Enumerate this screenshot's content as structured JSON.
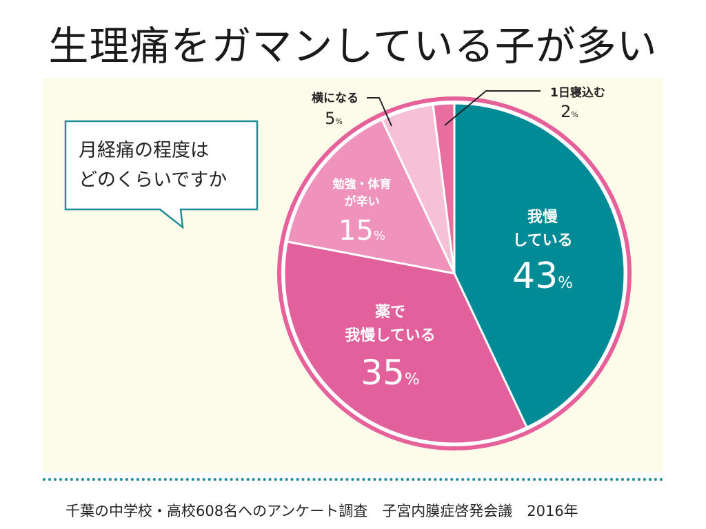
{
  "title": "生理痛をガマンしている子が多い",
  "footer": "千葉の中学校・高校608名へのアンケート調査　子宮内膜症啓発会議　2016年",
  "colors": {
    "panel_bg": "#fdfbea",
    "teal": "#008b96",
    "pink_outer": "#e6609a",
    "dark_pink": "#e2609b",
    "medium_pink": "#ef93bd",
    "light_pink": "#f6c0d6",
    "pink_small": "#ea6fa1",
    "callout_border": "#1f8e95"
  },
  "callout": {
    "line1": "月経痛の程度は",
    "line2": "どのくらいですか"
  },
  "chart_data": {
    "type": "pie",
    "title": "月経痛の程度はどのくらいですか",
    "unit": "%",
    "slices": [
      {
        "label_lines": [
          "我慢",
          "している"
        ],
        "label": "我慢している",
        "value": 43,
        "color": "#008b96"
      },
      {
        "label_lines": [
          "薬で",
          "我慢している"
        ],
        "label": "薬で我慢している",
        "value": 35,
        "color": "#e2609b"
      },
      {
        "label_lines": [
          "勉強・体育",
          "が辛い"
        ],
        "label": "勉強・体育が辛い",
        "value": 15,
        "color": "#ef93bd"
      },
      {
        "label_lines": [
          "横になる"
        ],
        "label": "横になる",
        "value": 5,
        "color": "#f6c0d6"
      },
      {
        "label_lines": [
          "1日寝込む"
        ],
        "label": "1日寝込む",
        "value": 2,
        "color": "#ea6fa1"
      }
    ]
  }
}
